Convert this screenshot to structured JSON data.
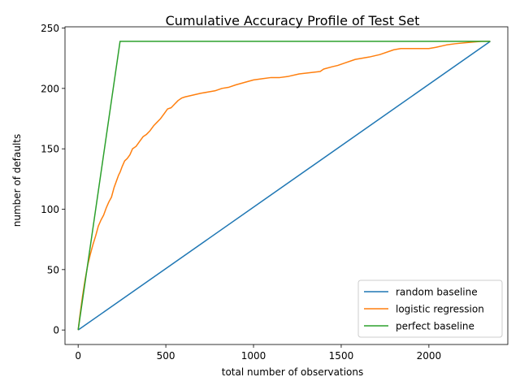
{
  "chart_data": {
    "type": "line",
    "title": "Cumulative Accuracy Profile of Test Set",
    "xlabel": "total number of observations",
    "ylabel": "number of defaults",
    "xlim": [
      -75,
      2450
    ],
    "ylim": [
      -12,
      251
    ],
    "xticks": [
      0,
      500,
      1000,
      1500,
      2000
    ],
    "yticks": [
      0,
      50,
      100,
      150,
      200,
      250
    ],
    "grid": false,
    "legend_position": "lower-right",
    "series": [
      {
        "name": "random baseline",
        "color": "#1f77b4",
        "x": [
          0,
          2350
        ],
        "y": [
          0,
          239
        ]
      },
      {
        "name": "logistic regression",
        "color": "#ff7f0e",
        "x": [
          0,
          10,
          25,
          40,
          55,
          70,
          85,
          100,
          115,
          130,
          145,
          160,
          175,
          190,
          205,
          220,
          230,
          240,
          250,
          265,
          280,
          295,
          310,
          330,
          350,
          370,
          390,
          410,
          430,
          450,
          470,
          490,
          510,
          530,
          550,
          570,
          590,
          610,
          640,
          670,
          700,
          740,
          780,
          820,
          860,
          900,
          950,
          1000,
          1050,
          1100,
          1150,
          1200,
          1260,
          1320,
          1380,
          1400,
          1450,
          1480,
          1520,
          1580,
          1660,
          1720,
          1800,
          1840,
          2000,
          2040,
          2100,
          2150,
          2220,
          2300,
          2350
        ],
        "y": [
          0,
          12,
          28,
          42,
          54,
          63,
          71,
          78,
          86,
          91,
          95,
          101,
          106,
          110,
          118,
          124,
          128,
          131,
          135,
          140,
          142,
          145,
          150,
          152,
          156,
          160,
          162,
          165,
          169,
          172,
          175,
          179,
          183,
          184,
          187,
          190,
          192,
          193,
          194,
          195,
          196,
          197,
          198,
          200,
          201,
          203,
          205,
          207,
          208,
          209,
          209,
          210,
          212,
          213,
          214,
          216,
          218,
          219,
          221,
          224,
          226,
          228,
          232,
          233,
          233,
          234,
          236,
          237,
          238,
          239,
          239
        ]
      },
      {
        "name": "perfect baseline",
        "color": "#2ca02c",
        "x": [
          0,
          239,
          2350
        ],
        "y": [
          0,
          239,
          239
        ]
      }
    ]
  }
}
